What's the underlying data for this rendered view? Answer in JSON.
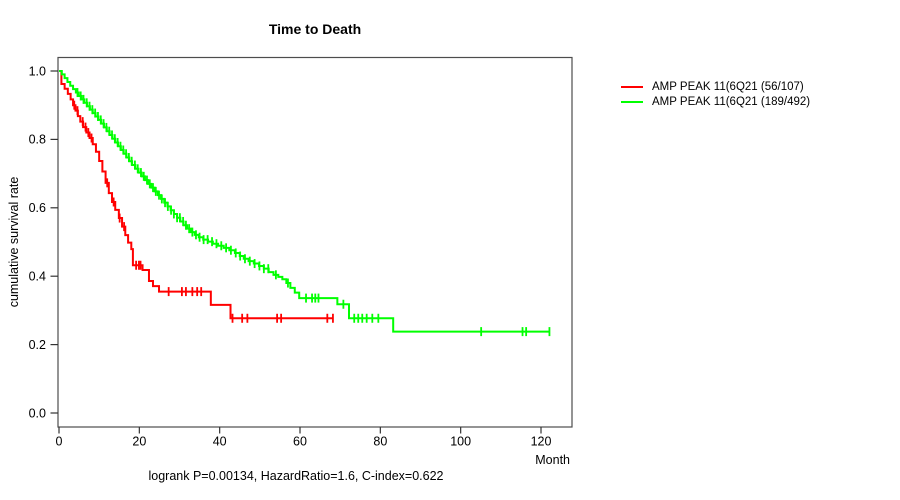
{
  "chart_data": {
    "type": "line",
    "subtype": "kaplan-meier-step",
    "title": "Time to Death",
    "xlabel": "Month",
    "ylabel": "cumulative survival rate",
    "annotation": "logrank P=0.00134, HazardRatio=1.6, C-index=0.622",
    "xlim": [
      0,
      126
    ],
    "ylim": [
      0,
      1.04
    ],
    "grid": false,
    "legend_position": "outside-top-right",
    "x_ticks": [
      {
        "label": "0",
        "value": 0
      },
      {
        "label": "20",
        "value": 20
      },
      {
        "label": "40",
        "value": 40
      },
      {
        "label": "60",
        "value": 60
      },
      {
        "label": "80",
        "value": 80
      },
      {
        "label": "100",
        "value": 100
      },
      {
        "label": "120",
        "value": 120
      }
    ],
    "y_ticks": [
      {
        "label": "1.0",
        "value": 1.0
      },
      {
        "label": "0.8",
        "value": 0.8
      },
      {
        "label": "0.6",
        "value": 0.6
      },
      {
        "label": "0.4",
        "value": 0.4
      },
      {
        "label": "0.2",
        "value": 0.2
      },
      {
        "label": "0.0",
        "value": 0.0
      }
    ],
    "series": [
      {
        "name": "AMP PEAK 11(6Q21 (56/107)",
        "color": "#ff0000",
        "end_month": 68.3,
        "points": [
          [
            0,
            1.0
          ],
          [
            0.6,
            0.962
          ],
          [
            1.4,
            0.948
          ],
          [
            2.2,
            0.933
          ],
          [
            2.9,
            0.917
          ],
          [
            3.5,
            0.9
          ],
          [
            4.1,
            0.884
          ],
          [
            4.7,
            0.868
          ],
          [
            5.3,
            0.852
          ],
          [
            6.0,
            0.836
          ],
          [
            6.8,
            0.82
          ],
          [
            7.6,
            0.804
          ],
          [
            8.4,
            0.786
          ],
          [
            9.2,
            0.764
          ],
          [
            10.0,
            0.737
          ],
          [
            10.8,
            0.706
          ],
          [
            11.6,
            0.673
          ],
          [
            12.4,
            0.643
          ],
          [
            13.2,
            0.617
          ],
          [
            14.0,
            0.594
          ],
          [
            14.9,
            0.57
          ],
          [
            15.7,
            0.545
          ],
          [
            16.5,
            0.52
          ],
          [
            17.2,
            0.498
          ],
          [
            18.0,
            0.479
          ],
          [
            18.4,
            0.432
          ],
          [
            20.8,
            0.418
          ],
          [
            22.4,
            0.386
          ],
          [
            23.4,
            0.371
          ],
          [
            24.9,
            0.355
          ],
          [
            37.8,
            0.316
          ],
          [
            42.7,
            0.277
          ]
        ],
        "censor_months": [
          3.8,
          4.6,
          5.9,
          6.6,
          7.3,
          8.1,
          12.0,
          13.6,
          15.1,
          16.2,
          19.2,
          19.9,
          20.3,
          27.3,
          30.6,
          31.6,
          33.2,
          34.4,
          35.4,
          43.2,
          45.6,
          46.9,
          54.3,
          55.3,
          66.8,
          68.2
        ]
      },
      {
        "name": "AMP PEAK 11(6Q21 (189/492)",
        "color": "#00ff00",
        "end_month": 122.2,
        "points": [
          [
            0,
            1.0
          ],
          [
            0.7,
            0.99
          ],
          [
            1.4,
            0.979
          ],
          [
            2.1,
            0.968
          ],
          [
            2.8,
            0.957
          ],
          [
            3.5,
            0.947
          ],
          [
            4.2,
            0.937
          ],
          [
            4.9,
            0.927
          ],
          [
            5.6,
            0.917
          ],
          [
            6.3,
            0.907
          ],
          [
            7.0,
            0.897
          ],
          [
            7.7,
            0.887
          ],
          [
            8.4,
            0.877
          ],
          [
            9.1,
            0.867
          ],
          [
            9.8,
            0.857
          ],
          [
            10.5,
            0.846
          ],
          [
            11.2,
            0.835
          ],
          [
            11.9,
            0.824
          ],
          [
            12.6,
            0.813
          ],
          [
            13.3,
            0.802
          ],
          [
            14.0,
            0.791
          ],
          [
            14.7,
            0.78
          ],
          [
            15.4,
            0.769
          ],
          [
            16.1,
            0.758
          ],
          [
            16.8,
            0.747
          ],
          [
            17.5,
            0.736
          ],
          [
            18.2,
            0.725
          ],
          [
            19.0,
            0.714
          ],
          [
            19.8,
            0.703
          ],
          [
            20.6,
            0.692
          ],
          [
            21.4,
            0.681
          ],
          [
            22.2,
            0.67
          ],
          [
            23.0,
            0.659
          ],
          [
            23.8,
            0.648
          ],
          [
            24.6,
            0.637
          ],
          [
            25.4,
            0.626
          ],
          [
            26.2,
            0.615
          ],
          [
            27.0,
            0.604
          ],
          [
            27.8,
            0.593
          ],
          [
            28.6,
            0.582
          ],
          [
            29.4,
            0.571
          ],
          [
            30.2,
            0.56
          ],
          [
            31.0,
            0.549
          ],
          [
            31.9,
            0.539
          ],
          [
            32.8,
            0.529
          ],
          [
            33.8,
            0.521
          ],
          [
            34.8,
            0.514
          ],
          [
            35.9,
            0.507
          ],
          [
            37.1,
            0.501
          ],
          [
            38.3,
            0.495
          ],
          [
            39.6,
            0.489
          ],
          [
            41.0,
            0.483
          ],
          [
            42.4,
            0.476
          ],
          [
            43.8,
            0.468
          ],
          [
            45.0,
            0.459
          ],
          [
            46.0,
            0.451
          ],
          [
            47.2,
            0.444
          ],
          [
            48.5,
            0.437
          ],
          [
            49.8,
            0.43
          ],
          [
            51.0,
            0.422
          ],
          [
            52.2,
            0.412
          ],
          [
            53.4,
            0.404
          ],
          [
            54.6,
            0.398
          ],
          [
            55.6,
            0.391
          ],
          [
            56.6,
            0.38
          ],
          [
            57.6,
            0.366
          ],
          [
            58.7,
            0.352
          ],
          [
            59.8,
            0.336
          ],
          [
            69.3,
            0.318
          ],
          [
            72.2,
            0.277
          ],
          [
            83.2,
            0.238
          ]
        ],
        "censor_months": [
          4.6,
          5.4,
          6.1,
          6.9,
          7.6,
          8.3,
          9.0,
          9.7,
          10.4,
          11.1,
          11.8,
          12.5,
          13.2,
          13.9,
          14.6,
          15.3,
          16.0,
          16.7,
          17.4,
          18.1,
          18.9,
          19.6,
          20.4,
          21.1,
          21.9,
          22.6,
          23.4,
          24.1,
          24.9,
          25.6,
          26.4,
          27.1,
          27.9,
          28.6,
          29.4,
          30.1,
          30.9,
          31.6,
          32.4,
          33.2,
          34.1,
          35.0,
          36.0,
          37.0,
          38.1,
          39.2,
          40.4,
          41.6,
          42.8,
          44.0,
          45.1,
          46.3,
          47.5,
          48.7,
          49.9,
          51.0,
          52.1,
          54.0,
          57.0,
          61.5,
          63.0,
          63.8,
          64.6,
          70.8,
          73.5,
          74.5,
          75.5,
          76.6,
          78.0,
          79.5,
          105.1,
          115.4,
          116.3,
          122.1
        ]
      }
    ]
  }
}
